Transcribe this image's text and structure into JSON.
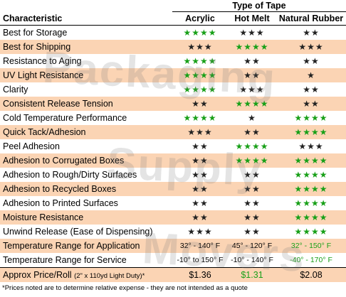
{
  "header": {
    "group_title": "Type of Tape",
    "characteristic": "Characteristic",
    "col_acrylic": "Acrylic",
    "col_hotmelt": "Hot Melt",
    "col_natural": "Natural Rubber"
  },
  "colors": {
    "green": "#18a018",
    "stripe": "#fbd4b4"
  },
  "rows": [
    {
      "label": "Best for Storage",
      "acrylic": "★★★★",
      "hotmelt": "★★★",
      "natural": "★★",
      "g": [
        1,
        0,
        0
      ]
    },
    {
      "label": "Best for Shipping",
      "acrylic": "★★★",
      "hotmelt": "★★★★",
      "natural": "★★★",
      "g": [
        0,
        1,
        0
      ]
    },
    {
      "label": "Resistance to Aging",
      "acrylic": "★★★★",
      "hotmelt": "★★",
      "natural": "★★",
      "g": [
        1,
        0,
        0
      ]
    },
    {
      "label": "UV Light Resistance",
      "acrylic": "★★★★",
      "hotmelt": "★★",
      "natural": "★",
      "g": [
        1,
        0,
        0
      ]
    },
    {
      "label": "Clarity",
      "acrylic": "★★★★",
      "hotmelt": "★★★",
      "natural": "★★",
      "g": [
        1,
        0,
        0
      ]
    },
    {
      "label": "Consistent Release Tension",
      "acrylic": "★★",
      "hotmelt": "★★★★",
      "natural": "★★",
      "g": [
        0,
        1,
        0
      ]
    },
    {
      "label": "Cold Temperature Performance",
      "acrylic": "★★★★",
      "hotmelt": "★",
      "natural": "★★★★",
      "g": [
        1,
        0,
        1
      ]
    },
    {
      "label": "Quick Tack/Adhesion",
      "acrylic": "★★★",
      "hotmelt": "★★",
      "natural": "★★★★",
      "g": [
        0,
        0,
        1
      ]
    },
    {
      "label": "Peel Adhesion",
      "acrylic": "★★",
      "hotmelt": "★★★★",
      "natural": "★★★",
      "g": [
        0,
        1,
        0
      ]
    },
    {
      "label": "Adhesion to Corrugated Boxes",
      "acrylic": "★★",
      "hotmelt": "★★★★",
      "natural": "★★★★",
      "g": [
        0,
        1,
        1
      ]
    },
    {
      "label": "Adhesion to Rough/Dirty Surfaces",
      "acrylic": "★★",
      "hotmelt": "★★",
      "natural": "★★★★",
      "g": [
        0,
        0,
        1
      ]
    },
    {
      "label": "Adhesion to Recycled Boxes",
      "acrylic": "★★",
      "hotmelt": "★★",
      "natural": "★★★★",
      "g": [
        0,
        0,
        1
      ]
    },
    {
      "label": "Adhesion to Printed Surfaces",
      "acrylic": "★★",
      "hotmelt": "★★",
      "natural": "★★★★",
      "g": [
        0,
        0,
        1
      ]
    },
    {
      "label": "Moisture Resistance",
      "acrylic": "★★",
      "hotmelt": "★★",
      "natural": "★★★★",
      "g": [
        0,
        0,
        1
      ]
    },
    {
      "label": "Unwind Release (Ease of Dispensing)",
      "acrylic": "★★★",
      "hotmelt": "★★",
      "natural": "★★★★",
      "g": [
        0,
        0,
        1
      ]
    }
  ],
  "temp_application": {
    "label": "Temperature Range for Application",
    "acrylic": "32° - 140° F",
    "hotmelt": "45° - 120° F",
    "natural": "32° - 150° F"
  },
  "temp_service": {
    "label": "Temperature Range for Service",
    "acrylic": "-10° to 150° F",
    "hotmelt": "-10° - 140° F",
    "natural": "-40° - 170° F"
  },
  "price": {
    "label": "Approx Price/Roll",
    "label_small": "(2\" x 110yd Light Duty)*",
    "acrylic": "$1.36",
    "hotmelt": "$1.31",
    "natural": "$2.08"
  },
  "footnote": "*Prices noted are to determine relative expense - they are not intended as a quote",
  "watermark": [
    "Packaging",
    "Supply",
    "Movers"
  ]
}
